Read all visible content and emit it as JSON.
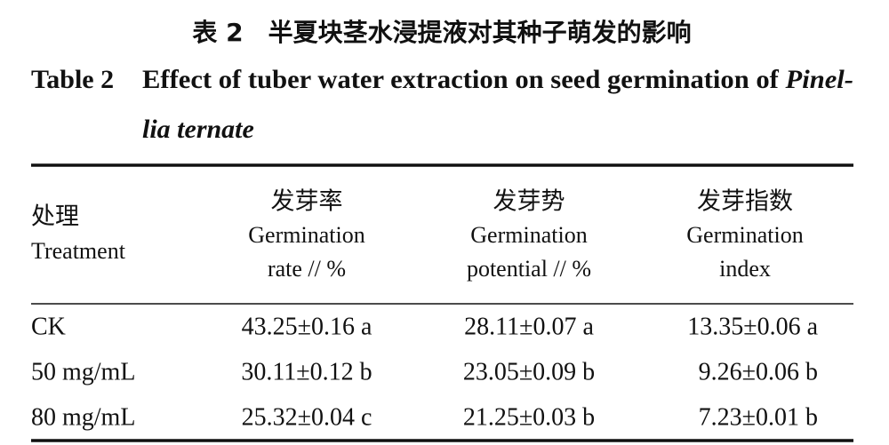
{
  "caption": {
    "title_cn": "表 2　半夏块茎水浸提液对其种子萌发的影响",
    "label": "Table 2",
    "text": "Effect of tuber water extraction on seed germination of ",
    "species_line1": "Pinel-",
    "species_line2": "lia ternate"
  },
  "table": {
    "headers": [
      {
        "cn": "处理",
        "en": [
          "Treatment"
        ]
      },
      {
        "cn": "发芽率",
        "en": [
          "Germination",
          "rate // %"
        ]
      },
      {
        "cn": "发芽势",
        "en": [
          "Germination",
          "potential // %"
        ]
      },
      {
        "cn": "发芽指数",
        "en": [
          "Germination",
          "index"
        ]
      }
    ],
    "rows": [
      [
        "CK",
        "43.25±0.16 a",
        "28.11±0.07 a",
        "13.35±0.06 a"
      ],
      [
        "50 mg/mL",
        "30.11±0.12 b",
        "23.05±0.09 b",
        "9.26±0.06 b"
      ],
      [
        "80 mg/mL",
        "25.32±0.04 c",
        "21.25±0.03 b",
        "7.23±0.01 b"
      ]
    ]
  }
}
